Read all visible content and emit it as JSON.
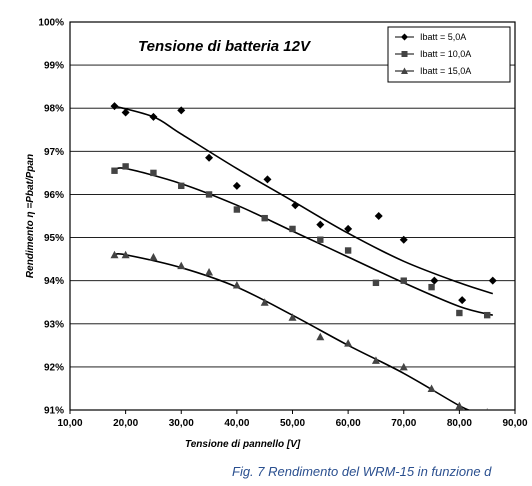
{
  "caption": "Fig. 7 Rendimento del WRM-15 in funzione d",
  "chart_data": {
    "type": "scatter",
    "title": "Tensione di batteria 12V",
    "xlabel": "Tensione di pannello [V]",
    "ylabel": "Rendimento η =Pbat/Ppan",
    "xlim": [
      10,
      90
    ],
    "ylim": [
      91,
      100
    ],
    "x_ticks": [
      "10,00",
      "20,00",
      "30,00",
      "40,00",
      "50,00",
      "60,00",
      "70,00",
      "80,00",
      "90,00"
    ],
    "y_ticks": [
      "91%",
      "92%",
      "93%",
      "94%",
      "95%",
      "96%",
      "97%",
      "98%",
      "99%",
      "100%"
    ],
    "grid": "horizontal",
    "legend_position": "top-right",
    "series": [
      {
        "name": "Ibatt = 5,0A",
        "marker": "diamond",
        "color": "#000000",
        "points": [
          [
            18,
            98.05
          ],
          [
            20,
            97.9
          ],
          [
            25,
            97.8
          ],
          [
            30,
            97.95
          ],
          [
            35,
            96.85
          ],
          [
            40,
            96.2
          ],
          [
            45.5,
            96.35
          ],
          [
            50.5,
            95.75
          ],
          [
            55,
            95.3
          ],
          [
            60,
            95.2
          ],
          [
            65.5,
            95.5
          ],
          [
            70,
            94.95
          ],
          [
            75.5,
            94.0
          ],
          [
            80.5,
            93.55
          ],
          [
            86,
            94.0
          ]
        ],
        "trend": [
          [
            18,
            98.05
          ],
          [
            25,
            97.8
          ],
          [
            30,
            97.4
          ],
          [
            40,
            96.6
          ],
          [
            50,
            95.85
          ],
          [
            60,
            95.1
          ],
          [
            70,
            94.45
          ],
          [
            80,
            93.95
          ],
          [
            86,
            93.7
          ]
        ]
      },
      {
        "name": "Ibatt = 10,0A",
        "marker": "square",
        "color": "#444444",
        "points": [
          [
            18,
            96.55
          ],
          [
            20,
            96.65
          ],
          [
            25,
            96.5
          ],
          [
            30,
            96.2
          ],
          [
            35,
            96.0
          ],
          [
            40,
            95.65
          ],
          [
            45,
            95.45
          ],
          [
            50,
            95.2
          ],
          [
            55,
            94.95
          ],
          [
            60,
            94.7
          ],
          [
            65,
            93.95
          ],
          [
            70,
            94.0
          ],
          [
            75,
            93.85
          ],
          [
            80,
            93.25
          ],
          [
            85,
            93.2
          ]
        ],
        "trend": [
          [
            18,
            96.55
          ],
          [
            20,
            96.6
          ],
          [
            30,
            96.25
          ],
          [
            40,
            95.75
          ],
          [
            50,
            95.15
          ],
          [
            60,
            94.55
          ],
          [
            70,
            93.95
          ],
          [
            80,
            93.4
          ],
          [
            86,
            93.2
          ]
        ]
      },
      {
        "name": "Ibatt = 15,0A",
        "marker": "triangle",
        "color": "#444444",
        "points": [
          [
            18,
            94.6
          ],
          [
            20,
            94.6
          ],
          [
            25,
            94.55
          ],
          [
            30,
            94.35
          ],
          [
            35,
            94.2
          ],
          [
            40,
            93.9
          ],
          [
            45,
            93.5
          ],
          [
            50,
            93.15
          ],
          [
            55,
            92.7
          ],
          [
            60,
            92.55
          ],
          [
            65,
            92.15
          ],
          [
            70,
            92.0
          ],
          [
            75,
            91.5
          ],
          [
            80,
            91.1
          ],
          [
            85,
            90.95
          ]
        ],
        "trend": [
          [
            18,
            94.6
          ],
          [
            20,
            94.6
          ],
          [
            30,
            94.3
          ],
          [
            40,
            93.85
          ],
          [
            50,
            93.2
          ],
          [
            60,
            92.5
          ],
          [
            70,
            91.85
          ],
          [
            80,
            91.1
          ],
          [
            83,
            90.95
          ]
        ]
      }
    ]
  }
}
